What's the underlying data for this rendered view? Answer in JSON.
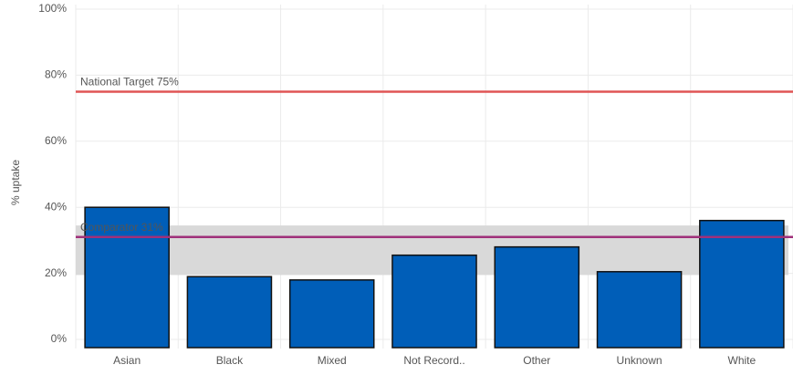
{
  "chart_data": {
    "type": "bar",
    "y_label": "% uptake",
    "categories": [
      "Asian",
      "Black",
      "Mixed",
      "Not Record..",
      "Other",
      "Unknown",
      "White"
    ],
    "values": [
      40,
      19,
      18,
      25.5,
      28,
      20.5,
      36
    ],
    "color": "#005eb8",
    "ylim": [
      0,
      100
    ],
    "yticks": [
      {
        "value": 0,
        "label": "0%"
      },
      {
        "value": 20,
        "label": "20%"
      },
      {
        "value": 40,
        "label": "40%"
      },
      {
        "value": 60,
        "label": "60%"
      },
      {
        "value": 80,
        "label": "80%"
      },
      {
        "value": 100,
        "label": "100%"
      }
    ],
    "grid": true,
    "band": {
      "range": [
        19.5,
        34.5
      ],
      "color": "#d9d9d9"
    },
    "reference_lines": [
      {
        "label": "National Target 75%",
        "value": 75,
        "color": "#e05555"
      },
      {
        "label": "Comparator 31%",
        "value": 31,
        "color": "#a0307a"
      }
    ]
  }
}
